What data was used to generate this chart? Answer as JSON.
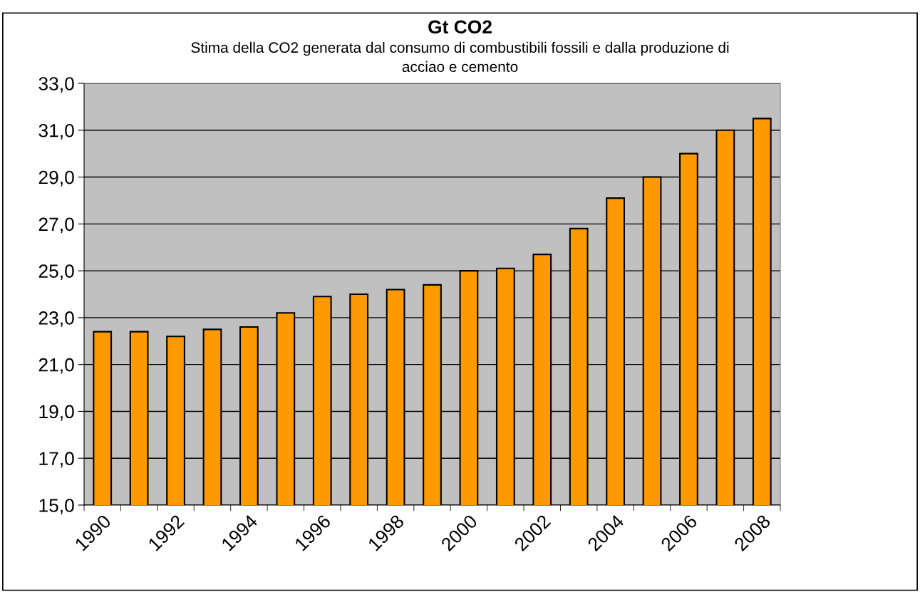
{
  "chart_data": {
    "type": "bar",
    "title": "Gt CO2",
    "subtitle": "Stima della CO2 generata dal consumo di combustibili fossili e dalla produzione di\nacciao e cemento",
    "categories": [
      "1990",
      null,
      "1992",
      null,
      "1994",
      null,
      "1996",
      null,
      "1998",
      null,
      "2000",
      null,
      "2002",
      null,
      "2004",
      null,
      "2006",
      null,
      "2008"
    ],
    "values": [
      22.4,
      22.4,
      22.2,
      22.5,
      22.6,
      23.2,
      23.9,
      24.0,
      24.2,
      24.4,
      25.0,
      25.1,
      25.7,
      26.8,
      28.1,
      29.0,
      30.0,
      31.0,
      31.5
    ],
    "color": "#ff9900",
    "ylim": [
      15,
      33
    ],
    "yticks": [
      {
        "value": 15,
        "label": "15,0"
      },
      {
        "value": 17,
        "label": "17,0"
      },
      {
        "value": 19,
        "label": "19,0"
      },
      {
        "value": 21,
        "label": "21,0"
      },
      {
        "value": 23,
        "label": "23,0"
      },
      {
        "value": 25,
        "label": "25,0"
      },
      {
        "value": 27,
        "label": "27,0"
      },
      {
        "value": 29,
        "label": "29,0"
      },
      {
        "value": 31,
        "label": "31,0"
      },
      {
        "value": 33,
        "label": "33,0"
      }
    ],
    "grid": "y",
    "legend": false
  }
}
